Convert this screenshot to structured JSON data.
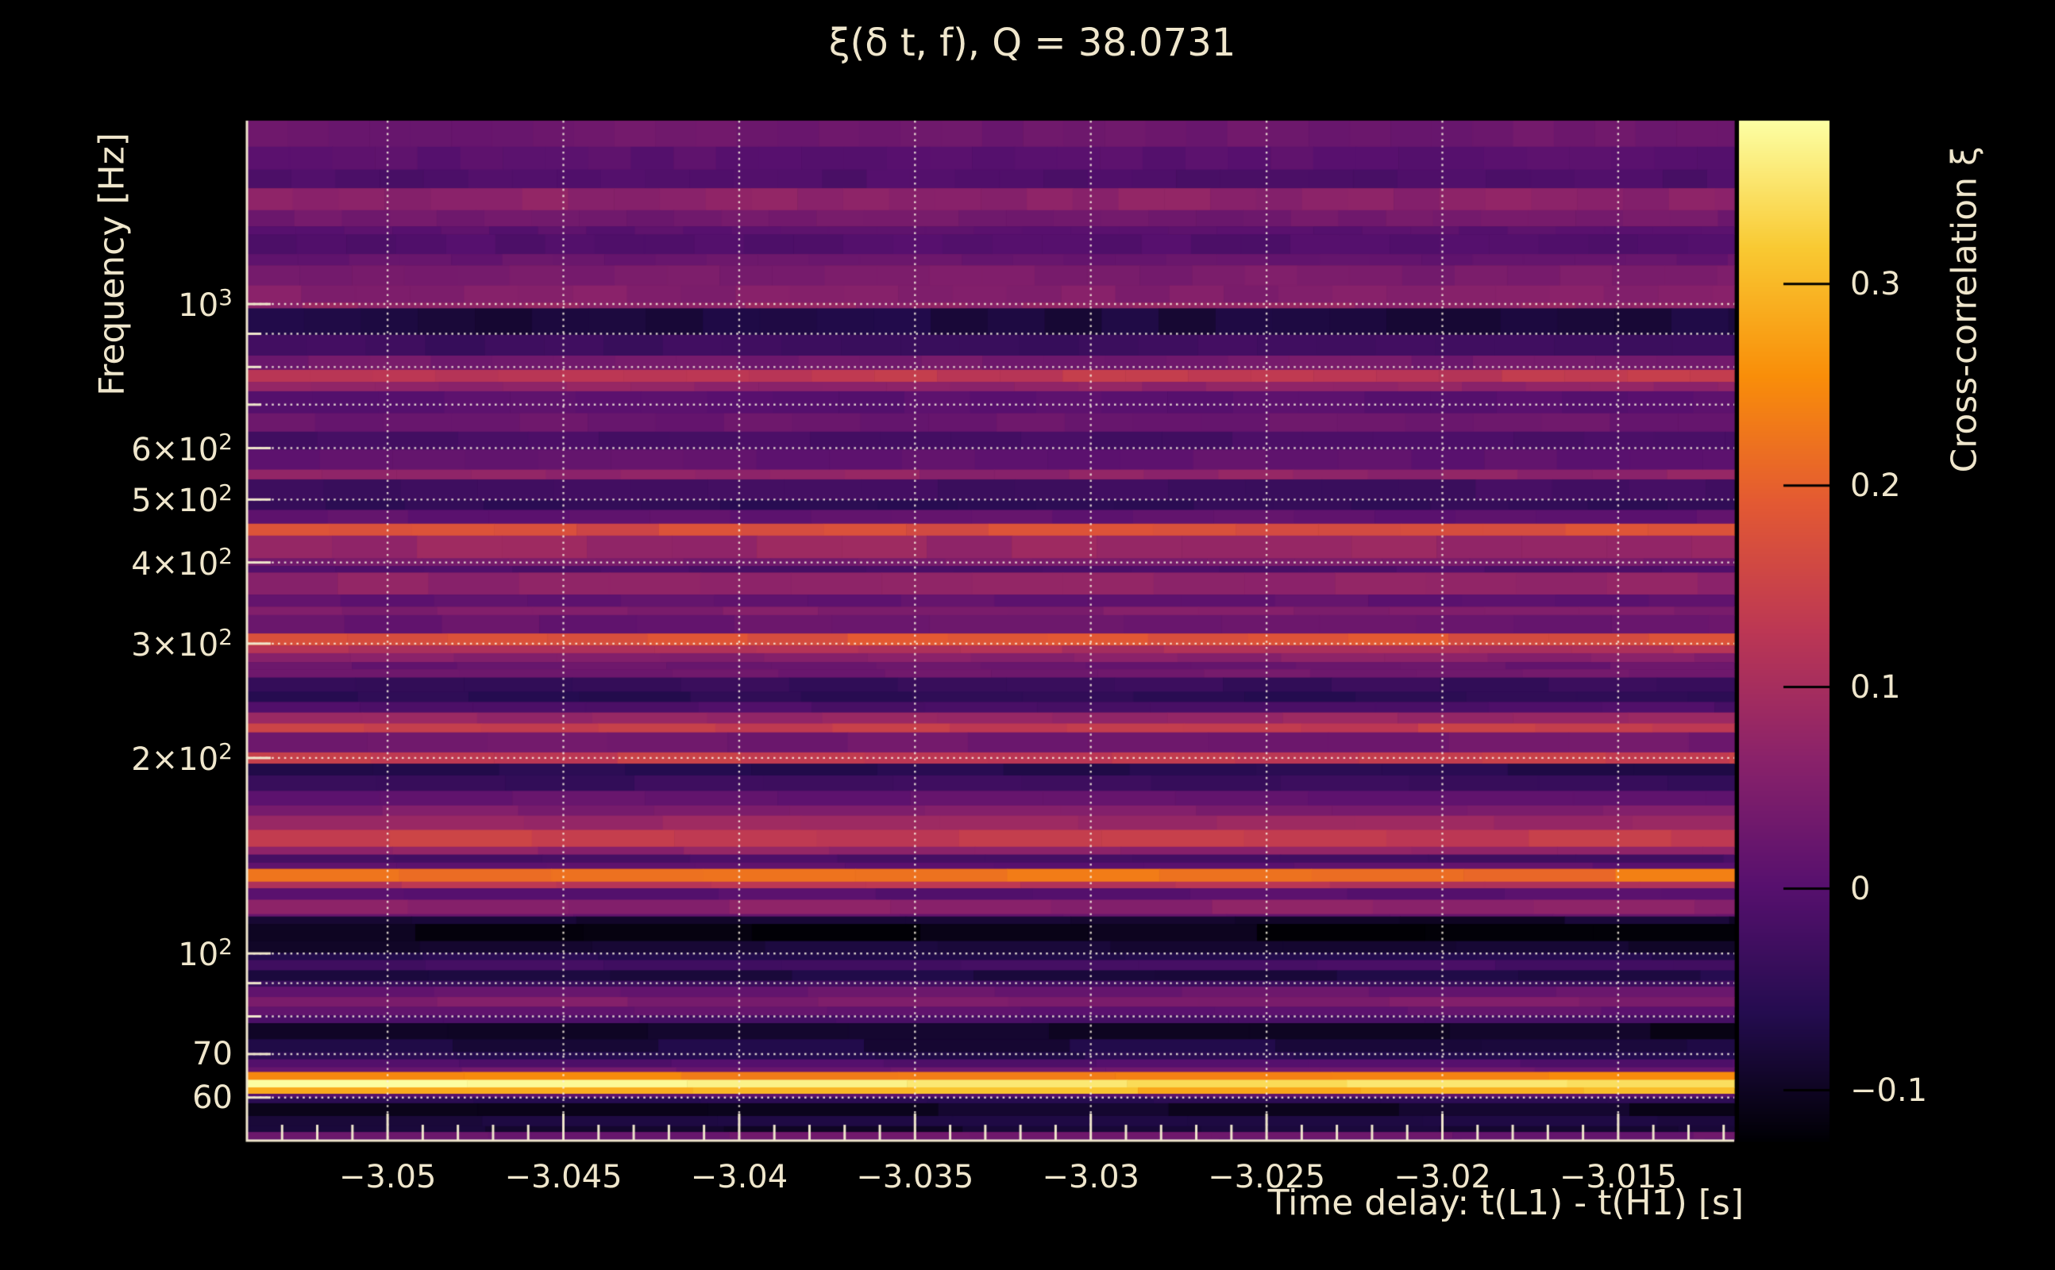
{
  "chart_data": {
    "type": "heatmap",
    "title": "ξ(δ t, f), Q = 38.0731",
    "xlabel": "Time delay: t(L1) - t(H1) [s]",
    "ylabel": "Frequency [Hz]",
    "colorbar_label": "Cross-correlation ξ",
    "colormap": "inferno",
    "grid": "dotted-white",
    "x_range": [
      -3.054,
      -3.0117
    ],
    "x_major_ticks": [
      {
        "v": -3.05,
        "label": "−3.05"
      },
      {
        "v": -3.045,
        "label": "−3.045"
      },
      {
        "v": -3.04,
        "label": "−3.04"
      },
      {
        "v": -3.035,
        "label": "−3.035"
      },
      {
        "v": -3.03,
        "label": "−3.03"
      },
      {
        "v": -3.025,
        "label": "−3.025"
      },
      {
        "v": -3.02,
        "label": "−3.02"
      },
      {
        "v": -3.015,
        "label": "−3.015"
      }
    ],
    "x_minor_step": 0.001,
    "y_scale": "log",
    "y_range": [
      51.5,
      1916
    ],
    "y_major_ticks": [
      {
        "f": 1000,
        "base": "10",
        "sup": "3"
      },
      {
        "f": 600,
        "base": "6×10",
        "sup": "2"
      },
      {
        "f": 500,
        "base": "5×10",
        "sup": "2"
      },
      {
        "f": 400,
        "base": "4×10",
        "sup": "2"
      },
      {
        "f": 300,
        "base": "3×10",
        "sup": "2"
      },
      {
        "f": 200,
        "base": "2×10",
        "sup": "2"
      },
      {
        "f": 100,
        "base": "10",
        "sup": "2"
      },
      {
        "f": 70,
        "base": "70",
        "sup": ""
      },
      {
        "f": 60,
        "base": "60",
        "sup": ""
      }
    ],
    "y_minor_ticks": [
      900,
      800,
      700,
      90,
      80
    ],
    "grid_y": [
      1000,
      900,
      800,
      700,
      600,
      500,
      400,
      300,
      200,
      100,
      90,
      80,
      70,
      60
    ],
    "colorbar": {
      "vmin": -0.125,
      "vmax": 0.381,
      "ticks": [
        {
          "v": 0.3,
          "label": "0.3"
        },
        {
          "v": 0.2,
          "label": "0.2"
        },
        {
          "v": 0.1,
          "label": "0.1"
        },
        {
          "v": 0.0,
          "label": "0"
        },
        {
          "v": -0.1,
          "label": "−0.1"
        }
      ]
    },
    "f_floor": 51.5,
    "stripes": [
      [
        1916,
        0.03
      ],
      [
        1747,
        0.005
      ],
      [
        1611,
        -0.01
      ],
      [
        1508,
        0.065
      ],
      [
        1395,
        0.035
      ],
      [
        1317,
        0.005
      ],
      [
        1280,
        -0.005
      ],
      [
        1194,
        0.02
      ],
      [
        1147,
        0.045
      ],
      [
        1068,
        0.055
      ],
      [
        1005,
        0.075
      ],
      [
        985,
        -0.075
      ],
      [
        897,
        -0.03
      ],
      [
        833,
        0.035
      ],
      [
        792,
        0.13
      ],
      [
        759,
        0.07
      ],
      [
        734,
        0.005
      ],
      [
        679,
        0.025
      ],
      [
        636,
        -0.02
      ],
      [
        597,
        0.012
      ],
      [
        556,
        0.07
      ],
      [
        537,
        -0.028
      ],
      [
        499,
        -0.05
      ],
      [
        482,
        0.012
      ],
      [
        459,
        0.17
      ],
      [
        440,
        0.08
      ],
      [
        406,
        0.04
      ],
      [
        395,
        -0.012
      ],
      [
        386,
        0.07
      ],
      [
        357,
        0.012
      ],
      [
        342,
        0.05
      ],
      [
        332,
        0.022
      ],
      [
        311,
        0.18
      ],
      [
        298,
        0.11
      ],
      [
        290,
        0.06
      ],
      [
        281,
        0.022
      ],
      [
        274,
        0.032
      ],
      [
        266,
        -0.04
      ],
      [
        253,
        -0.055
      ],
      [
        244,
        -0.012
      ],
      [
        235,
        0.08
      ],
      [
        226,
        0.14
      ],
      [
        219,
        0.03
      ],
      [
        204,
        0.14
      ],
      [
        196,
        -0.06
      ],
      [
        188,
        -0.035
      ],
      [
        178,
        0.015
      ],
      [
        169,
        0.05
      ],
      [
        163,
        0.08
      ],
      [
        155,
        0.14
      ],
      [
        146,
        0.07
      ],
      [
        142,
        -0.02
      ],
      [
        138,
        0.01
      ],
      [
        135,
        0.22
      ],
      [
        129,
        0.12
      ],
      [
        126,
        0.0
      ],
      [
        121,
        0.065
      ],
      [
        115,
        0.02
      ],
      [
        114,
        -0.09
      ],
      [
        111,
        -0.112
      ],
      [
        104.5,
        -0.085
      ],
      [
        100.2,
        -0.06
      ],
      [
        97.7,
        -0.02
      ],
      [
        94.2,
        -0.07
      ],
      [
        90.8,
        -0.03
      ],
      [
        88.9,
        0.02
      ],
      [
        85.7,
        0.05
      ],
      [
        82.8,
        0.012
      ],
      [
        80.3,
        -0.02
      ],
      [
        78.1,
        -0.1
      ],
      [
        73.8,
        -0.075
      ],
      [
        70.5,
        -0.06
      ],
      [
        68.7,
        -0.005
      ],
      [
        66.8,
        0.03
      ],
      [
        65.7,
        0.24
      ],
      [
        63.9,
        0.36
      ],
      [
        62.2,
        0.3
      ],
      [
        60.8,
        0.005
      ],
      [
        60.0,
        -0.055
      ],
      [
        58.8,
        -0.1
      ],
      [
        56.2,
        -0.075
      ],
      [
        54.2,
        -0.088
      ],
      [
        53.1,
        0.025
      ],
      [
        51.9,
        0.01
      ]
    ]
  }
}
